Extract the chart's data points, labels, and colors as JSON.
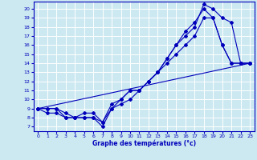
{
  "xlabel": "Graphe des températures (°c)",
  "bg_color": "#cce8f0",
  "line_color": "#0000bb",
  "grid_color": "#aaccdd",
  "x_ticks": [
    0,
    1,
    2,
    3,
    4,
    5,
    6,
    7,
    8,
    9,
    10,
    11,
    12,
    13,
    14,
    15,
    16,
    17,
    18,
    19,
    20,
    21,
    22,
    23
  ],
  "y_ticks": [
    7,
    8,
    9,
    10,
    11,
    12,
    13,
    14,
    15,
    16,
    17,
    18,
    19,
    20
  ],
  "xlim": [
    -0.5,
    23.5
  ],
  "ylim": [
    6.5,
    20.8
  ],
  "line1_x": [
    0,
    1,
    2,
    3,
    4,
    5,
    6,
    7,
    8,
    9,
    10,
    11,
    12,
    13,
    14,
    15,
    16,
    17,
    18,
    19,
    20,
    21,
    22,
    23
  ],
  "line1_y": [
    9,
    8.5,
    8.5,
    8,
    8,
    8,
    8,
    7,
    9,
    9.5,
    10,
    11,
    12,
    13,
    14,
    15,
    16,
    17,
    19,
    19,
    16,
    14,
    14,
    14
  ],
  "line2_x": [
    0,
    1,
    2,
    3,
    4,
    5,
    6,
    7,
    8,
    9,
    10,
    11,
    12,
    13,
    14,
    15,
    16,
    17,
    18,
    19,
    20,
    21,
    22,
    23
  ],
  "line2_y": [
    9,
    9,
    9,
    8,
    8,
    8,
    8,
    7.5,
    9,
    10,
    11,
    11,
    12,
    13,
    14.5,
    16,
    17.5,
    18.5,
    20,
    19,
    16,
    14,
    14,
    14
  ],
  "line3_x": [
    0,
    1,
    2,
    3,
    4,
    5,
    6,
    7,
    8,
    9,
    10,
    11,
    12,
    13,
    14,
    15,
    16,
    17,
    18,
    19,
    20,
    21,
    22,
    23
  ],
  "line3_y": [
    9,
    9,
    9,
    8.5,
    8,
    8.5,
    8.5,
    7.5,
    9.5,
    10,
    11,
    11,
    12,
    13,
    14.5,
    16,
    17,
    18,
    20.5,
    20,
    19,
    18.5,
    14,
    14
  ],
  "line4_x": [
    0,
    23
  ],
  "line4_y": [
    9,
    14
  ]
}
